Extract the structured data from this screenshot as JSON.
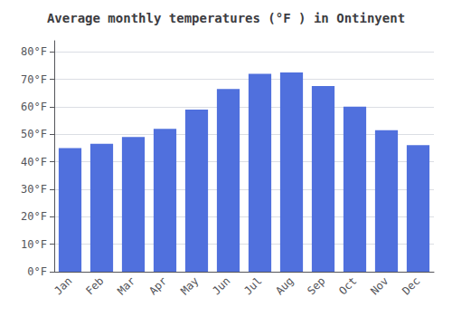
{
  "chart_data": {
    "type": "bar",
    "title": "Average monthly temperatures (°F ) in Ontinyent",
    "categories": [
      "Jan",
      "Feb",
      "Mar",
      "Apr",
      "May",
      "Jun",
      "Jul",
      "Aug",
      "Sep",
      "Oct",
      "Nov",
      "Dec"
    ],
    "values": [
      45,
      46.5,
      49,
      52,
      59,
      66.5,
      72,
      72.5,
      67.5,
      60,
      51.5,
      46
    ],
    "ylim": [
      0,
      84
    ],
    "yticks": [
      {
        "value": 0,
        "label": "0°F"
      },
      {
        "value": 10,
        "label": "10°F"
      },
      {
        "value": 20,
        "label": "20°F"
      },
      {
        "value": 30,
        "label": "30°F"
      },
      {
        "value": 40,
        "label": "40°F"
      },
      {
        "value": 50,
        "label": "50°F"
      },
      {
        "value": 60,
        "label": "60°F"
      },
      {
        "value": 70,
        "label": "70°F"
      },
      {
        "value": 80,
        "label": "80°F"
      }
    ],
    "grid": true
  }
}
